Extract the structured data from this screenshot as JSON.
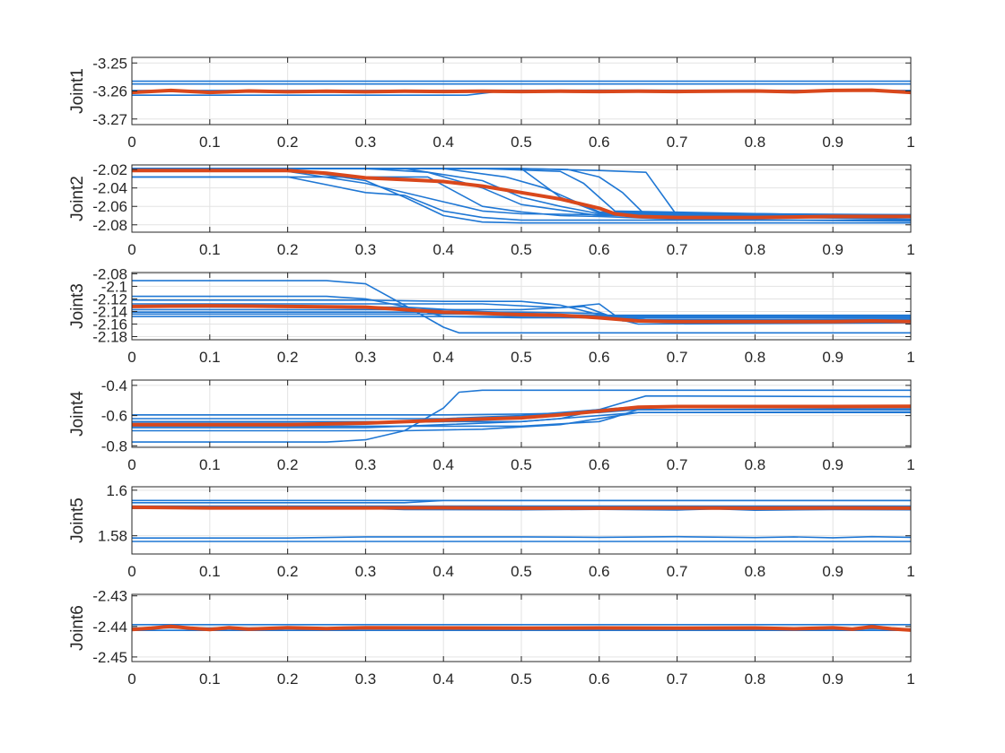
{
  "figure": {
    "background": "#ffffff"
  },
  "colors": {
    "demo": "#1f77d4",
    "mean": "#d9481c",
    "grid": "#e3e3e3",
    "axis": "#262626"
  },
  "chart_data": [
    {
      "type": "line",
      "ylabel": "Joint1",
      "xlim": [
        0,
        1
      ],
      "ylim": [
        -3.272,
        -3.248
      ],
      "yticks": [
        -3.25,
        -3.26,
        -3.27
      ],
      "xticks": [
        0,
        0.1,
        0.2,
        0.3,
        0.4,
        0.5,
        0.6,
        0.7,
        0.8,
        0.9,
        1
      ],
      "grid": true,
      "demos": [
        {
          "x": [
            0,
            1
          ],
          "y": [
            -3.2565,
            -3.2565
          ]
        },
        {
          "x": [
            0,
            1
          ],
          "y": [
            -3.2575,
            -3.2575
          ]
        },
        {
          "x": [
            0,
            0.3,
            0.6,
            1
          ],
          "y": [
            -3.2598,
            -3.2598,
            -3.2597,
            -3.2598
          ]
        },
        {
          "x": [
            0,
            0.43,
            0.47,
            1
          ],
          "y": [
            -3.2615,
            -3.2615,
            -3.2602,
            -3.26
          ]
        }
      ],
      "mean": {
        "x": [
          0,
          0.05,
          0.1,
          0.15,
          0.2,
          0.25,
          0.3,
          0.35,
          0.4,
          0.45,
          0.5,
          0.55,
          0.6,
          0.65,
          0.7,
          0.75,
          0.8,
          0.85,
          0.9,
          0.95,
          1
        ],
        "y": [
          -3.2605,
          -3.2598,
          -3.2605,
          -3.26,
          -3.2603,
          -3.2601,
          -3.2603,
          -3.2601,
          -3.2602,
          -3.2601,
          -3.2602,
          -3.2601,
          -3.2602,
          -3.2601,
          -3.2602,
          -3.2601,
          -3.26,
          -3.2603,
          -3.2598,
          -3.2597,
          -3.2605
        ]
      }
    },
    {
      "type": "line",
      "ylabel": "Joint2",
      "xlim": [
        0,
        1
      ],
      "ylim": [
        -2.088,
        -2.015
      ],
      "yticks": [
        -2.02,
        -2.04,
        -2.06,
        -2.08
      ],
      "xticks": [
        0,
        0.1,
        0.2,
        0.3,
        0.4,
        0.5,
        0.6,
        0.7,
        0.8,
        0.9,
        1
      ],
      "grid": true,
      "demos": [
        {
          "x": [
            0,
            0.2,
            0.3,
            0.4,
            0.45,
            0.5,
            0.6,
            1
          ],
          "y": [
            -2.022,
            -2.022,
            -2.035,
            -2.055,
            -2.065,
            -2.068,
            -2.069,
            -2.069
          ]
        },
        {
          "x": [
            0,
            0.2,
            0.3,
            0.35,
            0.4,
            0.45,
            0.5,
            1
          ],
          "y": [
            -2.028,
            -2.028,
            -2.045,
            -2.048,
            -2.065,
            -2.072,
            -2.075,
            -2.075
          ]
        },
        {
          "x": [
            0,
            0.22,
            0.3,
            0.35,
            0.4,
            0.45,
            0.5,
            1
          ],
          "y": [
            -2.019,
            -2.022,
            -2.032,
            -2.05,
            -2.07,
            -2.077,
            -2.078,
            -2.078
          ]
        },
        {
          "x": [
            0,
            0.3,
            0.38,
            0.45,
            0.5,
            0.55,
            0.6,
            1
          ],
          "y": [
            -2.019,
            -2.019,
            -2.023,
            -2.04,
            -2.058,
            -2.064,
            -2.07,
            -2.07
          ]
        },
        {
          "x": [
            0,
            0.35,
            0.45,
            0.5,
            0.55,
            0.6,
            1
          ],
          "y": [
            -2.019,
            -2.019,
            -2.032,
            -2.05,
            -2.06,
            -2.068,
            -2.07
          ]
        },
        {
          "x": [
            0,
            0.4,
            0.48,
            0.53,
            0.57,
            0.6,
            1
          ],
          "y": [
            -2.019,
            -2.019,
            -2.028,
            -2.04,
            -2.055,
            -2.066,
            -2.07
          ]
        },
        {
          "x": [
            0,
            0.45,
            0.55,
            0.58,
            0.6,
            0.62,
            1
          ],
          "y": [
            -2.019,
            -2.019,
            -2.022,
            -2.035,
            -2.05,
            -2.065,
            -2.071
          ]
        },
        {
          "x": [
            0,
            0.5,
            0.56,
            0.6,
            0.63,
            0.66,
            1
          ],
          "y": [
            -2.019,
            -2.019,
            -2.02,
            -2.028,
            -2.045,
            -2.07,
            -2.072
          ]
        },
        {
          "x": [
            0,
            0.5,
            0.6,
            0.66,
            0.7,
            1
          ],
          "y": [
            -2.019,
            -2.019,
            -2.021,
            -2.023,
            -2.07,
            -2.074
          ]
        },
        {
          "x": [
            0,
            0.38,
            0.45,
            0.5,
            0.55,
            0.6,
            0.7,
            1
          ],
          "y": [
            -2.028,
            -2.028,
            -2.06,
            -2.066,
            -2.07,
            -2.071,
            -2.074,
            -2.076
          ]
        },
        {
          "x": [
            0,
            0.5,
            0.55,
            0.6,
            1
          ],
          "y": [
            -2.019,
            -2.019,
            -2.05,
            -2.067,
            -2.069
          ]
        }
      ],
      "mean": {
        "x": [
          0,
          0.1,
          0.2,
          0.25,
          0.3,
          0.35,
          0.4,
          0.45,
          0.5,
          0.55,
          0.6,
          0.62,
          0.65,
          0.7,
          0.8,
          0.9,
          1
        ],
        "y": [
          -2.021,
          -2.021,
          -2.021,
          -2.024,
          -2.029,
          -2.031,
          -2.033,
          -2.038,
          -2.045,
          -2.052,
          -2.062,
          -2.068,
          -2.071,
          -2.072,
          -2.072,
          -2.071,
          -2.071
        ]
      }
    },
    {
      "type": "line",
      "ylabel": "Joint3",
      "xlim": [
        0,
        1
      ],
      "ylim": [
        -2.185,
        -2.078
      ],
      "yticks": [
        -2.08,
        -2.1,
        -2.12,
        -2.14,
        -2.16,
        -2.18
      ],
      "xticks": [
        0,
        0.1,
        0.2,
        0.3,
        0.4,
        0.5,
        0.6,
        0.7,
        0.8,
        0.9,
        1
      ],
      "grid": true,
      "demos": [
        {
          "x": [
            0,
            0.25,
            0.3,
            0.35,
            0.4,
            0.42,
            1
          ],
          "y": [
            -2.091,
            -2.091,
            -2.096,
            -2.13,
            -2.165,
            -2.174,
            -2.174
          ]
        },
        {
          "x": [
            0,
            0.25,
            0.3,
            0.35,
            0.4,
            0.5,
            0.6,
            1
          ],
          "y": [
            -2.116,
            -2.116,
            -2.12,
            -2.132,
            -2.148,
            -2.15,
            -2.15,
            -2.15
          ]
        },
        {
          "x": [
            0,
            0.3,
            0.4,
            0.5,
            0.55,
            0.6,
            0.65,
            1
          ],
          "y": [
            -2.122,
            -2.122,
            -2.124,
            -2.124,
            -2.13,
            -2.145,
            -2.16,
            -2.158
          ]
        },
        {
          "x": [
            0,
            0.45,
            0.55,
            0.6,
            0.63,
            1
          ],
          "y": [
            -2.128,
            -2.128,
            -2.134,
            -2.128,
            -2.155,
            -2.152
          ]
        },
        {
          "x": [
            0,
            0.35,
            0.45,
            0.55,
            0.6,
            1
          ],
          "y": [
            -2.133,
            -2.133,
            -2.14,
            -2.145,
            -2.146,
            -2.146
          ]
        },
        {
          "x": [
            0,
            0.4,
            0.5,
            0.58,
            0.62,
            1
          ],
          "y": [
            -2.137,
            -2.137,
            -2.137,
            -2.132,
            -2.15,
            -2.15
          ]
        },
        {
          "x": [
            0,
            0.5,
            0.6,
            0.62,
            0.66,
            1
          ],
          "y": [
            -2.141,
            -2.141,
            -2.143,
            -2.15,
            -2.155,
            -2.155
          ]
        },
        {
          "x": [
            0,
            1
          ],
          "y": [
            -2.148,
            -2.148
          ]
        },
        {
          "x": [
            0,
            0.5,
            0.6,
            0.66,
            1
          ],
          "y": [
            -2.144,
            -2.144,
            -2.147,
            -2.153,
            -2.153
          ]
        }
      ],
      "mean": {
        "x": [
          0,
          0.1,
          0.2,
          0.3,
          0.35,
          0.4,
          0.5,
          0.55,
          0.6,
          0.65,
          0.7,
          0.8,
          0.9,
          0.95,
          1
        ],
        "y": [
          -2.132,
          -2.131,
          -2.132,
          -2.133,
          -2.137,
          -2.141,
          -2.145,
          -2.146,
          -2.15,
          -2.155,
          -2.156,
          -2.156,
          -2.156,
          -2.155,
          -2.156
        ]
      }
    },
    {
      "type": "line",
      "ylabel": "Joint4",
      "xlim": [
        0,
        1
      ],
      "ylim": [
        -0.81,
        -0.365
      ],
      "yticks": [
        -0.4,
        -0.6,
        -0.8
      ],
      "xticks": [
        0,
        0.1,
        0.2,
        0.3,
        0.4,
        0.5,
        0.6,
        0.7,
        0.8,
        0.9,
        1
      ],
      "grid": true,
      "demos": [
        {
          "x": [
            0,
            0.25,
            0.3,
            0.35,
            0.4,
            0.42,
            0.45,
            1
          ],
          "y": [
            -0.775,
            -0.775,
            -0.76,
            -0.7,
            -0.55,
            -0.445,
            -0.432,
            -0.432
          ]
        },
        {
          "x": [
            0,
            0.4,
            0.5,
            0.6,
            0.65,
            1
          ],
          "y": [
            -0.595,
            -0.595,
            -0.59,
            -0.58,
            -0.56,
            -0.56
          ]
        },
        {
          "x": [
            0,
            0.3,
            0.4,
            0.5,
            0.55,
            0.6,
            0.66,
            1
          ],
          "y": [
            -0.68,
            -0.68,
            -0.66,
            -0.64,
            -0.62,
            -0.56,
            -0.47,
            -0.475
          ]
        },
        {
          "x": [
            0,
            0.3,
            0.4,
            0.5,
            0.6,
            0.65,
            1
          ],
          "y": [
            -0.65,
            -0.65,
            -0.64,
            -0.61,
            -0.56,
            -0.54,
            -0.54
          ]
        },
        {
          "x": [
            0,
            0.35,
            0.45,
            0.55,
            0.65,
            1
          ],
          "y": [
            -0.7,
            -0.7,
            -0.69,
            -0.66,
            -0.58,
            -0.58
          ]
        },
        {
          "x": [
            0,
            0.5,
            0.6,
            0.62,
            0.65,
            1
          ],
          "y": [
            -0.67,
            -0.67,
            -0.64,
            -0.61,
            -0.56,
            -0.555
          ]
        },
        {
          "x": [
            0,
            0.4,
            0.5,
            0.6,
            1
          ],
          "y": [
            -0.62,
            -0.62,
            -0.6,
            -0.56,
            -0.56
          ]
        },
        {
          "x": [
            0,
            0.5,
            0.6,
            0.65,
            1
          ],
          "y": [
            -0.64,
            -0.64,
            -0.6,
            -0.58,
            -0.575
          ]
        }
      ],
      "mean": {
        "x": [
          0,
          0.1,
          0.2,
          0.3,
          0.4,
          0.5,
          0.55,
          0.6,
          0.65,
          0.7,
          0.8,
          0.9,
          1
        ],
        "y": [
          -0.66,
          -0.66,
          -0.66,
          -0.65,
          -0.63,
          -0.615,
          -0.595,
          -0.57,
          -0.545,
          -0.54,
          -0.54,
          -0.54,
          -0.538
        ]
      }
    },
    {
      "type": "line",
      "ylabel": "Joint5",
      "xlim": [
        0,
        1
      ],
      "ylim": [
        1.572,
        1.6015
      ],
      "yticks": [
        1.6,
        1.58
      ],
      "xticks": [
        0,
        0.1,
        0.2,
        0.3,
        0.4,
        0.5,
        0.6,
        0.7,
        0.8,
        0.9,
        1
      ],
      "grid": true,
      "demos": [
        {
          "x": [
            0,
            1
          ],
          "y": [
            1.5955,
            1.5955
          ]
        },
        {
          "x": [
            0,
            0.35,
            0.4,
            1
          ],
          "y": [
            1.5945,
            1.5945,
            1.5955,
            1.5955
          ]
        },
        {
          "x": [
            0,
            0.3,
            0.35,
            0.5,
            0.6,
            0.7,
            0.75,
            0.8,
            0.9,
            1
          ],
          "y": [
            1.592,
            1.592,
            1.5915,
            1.5914,
            1.5916,
            1.5913,
            1.5918,
            1.5912,
            1.5915,
            1.5914
          ]
        },
        {
          "x": [
            0,
            1
          ],
          "y": [
            1.593,
            1.593
          ]
        },
        {
          "x": [
            0,
            0.2,
            0.3,
            0.5,
            0.6,
            0.7,
            0.8,
            0.85,
            0.9,
            0.95,
            1
          ],
          "y": [
            1.579,
            1.579,
            1.5795,
            1.5795,
            1.5793,
            1.5796,
            1.5792,
            1.5795,
            1.5791,
            1.5796,
            1.5793
          ]
        },
        {
          "x": [
            0,
            1
          ],
          "y": [
            1.5775,
            1.5775
          ]
        }
      ],
      "mean": {
        "x": [
          0,
          0.1,
          0.2,
          0.3,
          0.4,
          0.5,
          0.6,
          0.7,
          0.8,
          0.9,
          1
        ],
        "y": [
          1.5925,
          1.5922,
          1.5922,
          1.5922,
          1.5923,
          1.5921,
          1.5921,
          1.5922,
          1.5921,
          1.5922,
          1.5921
        ]
      }
    },
    {
      "type": "line",
      "ylabel": "Joint6",
      "xlim": [
        0,
        1
      ],
      "ylim": [
        -2.4515,
        -2.4295
      ],
      "yticks": [
        -2.43,
        -2.44,
        -2.45
      ],
      "xticks": [
        0,
        0.1,
        0.2,
        0.3,
        0.4,
        0.5,
        0.6,
        0.7,
        0.8,
        0.9,
        1
      ],
      "grid": true,
      "demos": [
        {
          "x": [
            0,
            1
          ],
          "y": [
            -2.4394,
            -2.4394
          ]
        },
        {
          "x": [
            0,
            1
          ],
          "y": [
            -2.4413,
            -2.4413
          ]
        },
        {
          "x": [
            0,
            0.4,
            0.5,
            1
          ],
          "y": [
            -2.4405,
            -2.4405,
            -2.4408,
            -2.4408
          ]
        }
      ],
      "mean": {
        "x": [
          0,
          0.025,
          0.05,
          0.075,
          0.1,
          0.125,
          0.15,
          0.2,
          0.25,
          0.3,
          0.4,
          0.5,
          0.6,
          0.7,
          0.8,
          0.85,
          0.9,
          0.925,
          0.95,
          0.975,
          1
        ],
        "y": [
          -2.441,
          -2.4406,
          -2.44,
          -2.4406,
          -2.441,
          -2.4404,
          -2.4409,
          -2.4404,
          -2.4407,
          -2.4404,
          -2.4405,
          -2.4406,
          -2.4405,
          -2.4406,
          -2.4405,
          -2.4408,
          -2.4404,
          -2.4409,
          -2.4401,
          -2.4408,
          -2.4412
        ]
      }
    }
  ]
}
